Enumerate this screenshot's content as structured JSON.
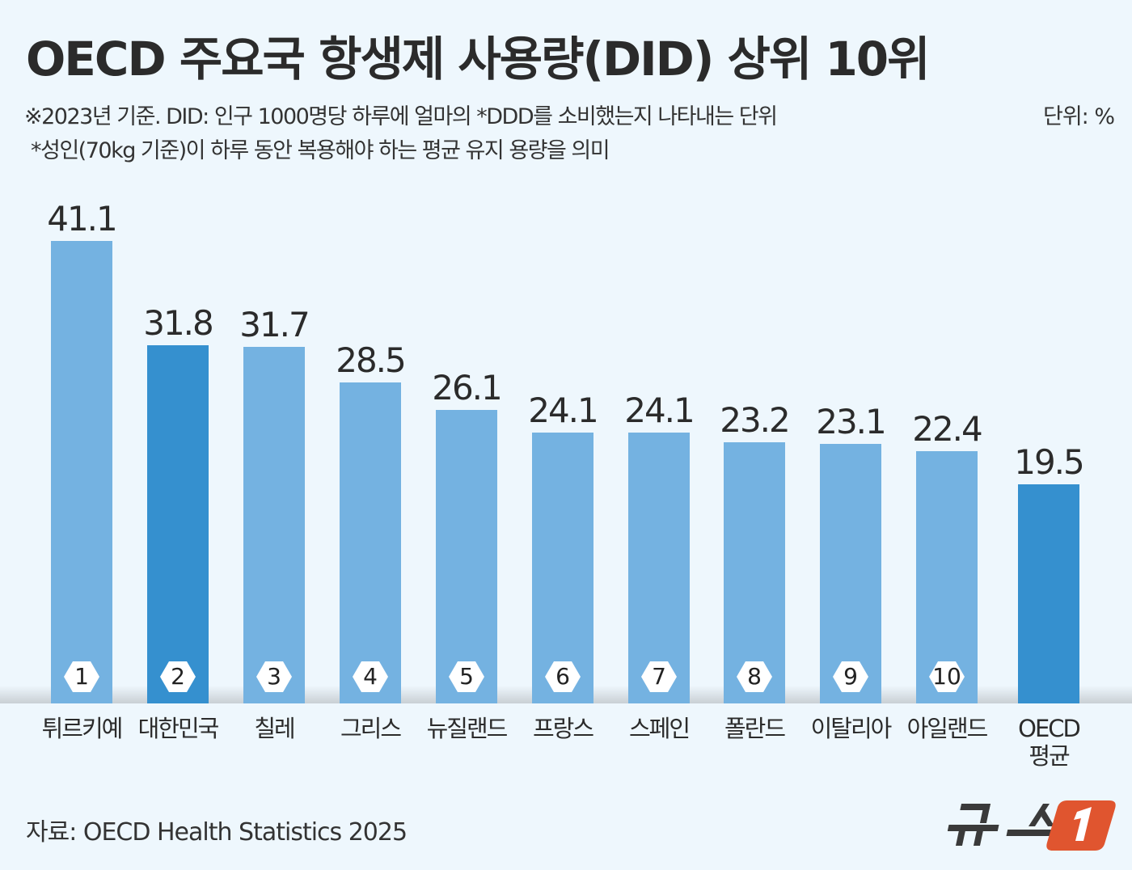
{
  "title": "OECD 주요국 항생제 사용량(DID) 상위 10위",
  "notes": [
    "※2023년 기준. DID: 인구 1000명당 하루에 얼마의 *DDD를 소비했는지 나타내는 단위",
    "*성인(70kg 기준)이 하루 동안 복용해야 하는 평균 유지 용량을 의미"
  ],
  "unit": "단위: %",
  "source": "자료: OECD Health Statistics 2025",
  "logo_text": "뉴스1",
  "colors": {
    "bar": "#74b2e1",
    "highlight": "#3590cf",
    "logo": "#e0552f"
  },
  "chart_data": {
    "type": "bar",
    "categories": [
      "튀르키예",
      "대한민국",
      "칠레",
      "그리스",
      "뉴질랜드",
      "프랑스",
      "스페인",
      "폴란드",
      "이탈리아",
      "아일랜드",
      "OECD 평균"
    ],
    "values": [
      41.1,
      31.8,
      31.7,
      28.5,
      26.1,
      24.1,
      24.1,
      23.2,
      23.1,
      22.4,
      19.5
    ],
    "value_labels": [
      "41.1",
      "31.8",
      "31.7",
      "28.5",
      "26.1",
      "24.1",
      "24.1",
      "23.2",
      "23.1",
      "22.4",
      "19.5"
    ],
    "ranks": [
      "1",
      "2",
      "3",
      "4",
      "5",
      "6",
      "7",
      "8",
      "9",
      "10",
      ""
    ],
    "highlighted": [
      "대한민국",
      "OECD 평균"
    ],
    "ylim": [
      0,
      41.1
    ],
    "grid": false,
    "legend": "none"
  }
}
